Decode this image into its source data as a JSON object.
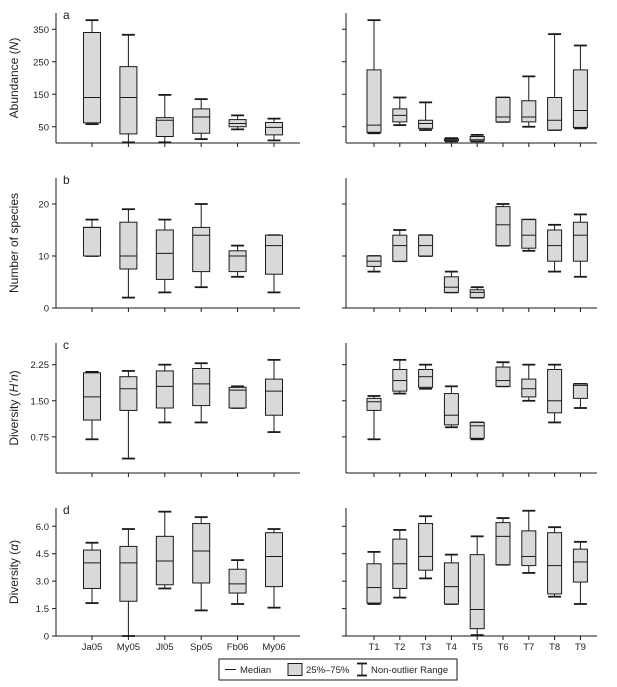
{
  "colors": {
    "box_fill": "#d9d9d9",
    "stroke": "#1a1a1a"
  },
  "x_groups": {
    "months": [
      "Ja05",
      "My05",
      "Jl05",
      "Sp05",
      "Fb06",
      "My06"
    ],
    "transects": [
      "T1",
      "T2",
      "T3",
      "T4",
      "T5",
      "T6",
      "T7",
      "T8",
      "T9"
    ]
  },
  "legend": {
    "median": "Median",
    "box": "25%–75%",
    "range": "Non-outlier Range"
  },
  "chart_data": [
    {
      "type": "boxplot",
      "panel": "a",
      "ylabel": "Abundance (N)",
      "ylabel_italic": "N",
      "ylim": [
        0,
        400
      ],
      "yticks": [
        50,
        150,
        250,
        350
      ],
      "ytick_labels": [
        "50",
        "150",
        "250",
        "350"
      ],
      "left": [
        {
          "category": "Ja05",
          "min": 58,
          "q1": 62,
          "median": 140,
          "q3": 340,
          "max": 378
        },
        {
          "category": "My05",
          "min": 2,
          "q1": 28,
          "median": 140,
          "q3": 235,
          "max": 333
        },
        {
          "category": "Jl05",
          "min": 2,
          "q1": 20,
          "median": 70,
          "q3": 78,
          "max": 148
        },
        {
          "category": "Sp05",
          "min": 12,
          "q1": 30,
          "median": 80,
          "q3": 105,
          "max": 135
        },
        {
          "category": "Fb06",
          "min": 42,
          "q1": 50,
          "median": 60,
          "q3": 72,
          "max": 85
        },
        {
          "category": "My06",
          "min": 8,
          "q1": 25,
          "median": 48,
          "q3": 63,
          "max": 75
        }
      ],
      "right": [
        {
          "category": "T1",
          "min": 30,
          "q1": 33,
          "median": 55,
          "q3": 225,
          "max": 378
        },
        {
          "category": "T2",
          "min": 55,
          "q1": 65,
          "median": 85,
          "q3": 105,
          "max": 140
        },
        {
          "category": "T3",
          "min": 40,
          "q1": 45,
          "median": 60,
          "q3": 70,
          "max": 125
        },
        {
          "category": "T4",
          "min": 5,
          "q1": 7,
          "median": 10,
          "q3": 13,
          "max": 15
        },
        {
          "category": "T5",
          "min": 5,
          "q1": 6,
          "median": 10,
          "q3": 20,
          "max": 25
        },
        {
          "category": "T6",
          "min": 65,
          "q1": 65,
          "median": 80,
          "q3": 140,
          "max": 140
        },
        {
          "category": "T7",
          "min": 50,
          "q1": 65,
          "median": 80,
          "q3": 130,
          "max": 205
        },
        {
          "category": "T8",
          "min": 40,
          "q1": 40,
          "median": 70,
          "q3": 140,
          "max": 335
        },
        {
          "category": "T9",
          "min": 45,
          "q1": 48,
          "median": 100,
          "q3": 225,
          "max": 300
        }
      ]
    },
    {
      "type": "boxplot",
      "panel": "b",
      "ylabel": "Number of species",
      "ylabel_italic": "",
      "ylim": [
        0,
        25
      ],
      "yticks": [
        0,
        10,
        20
      ],
      "ytick_labels": [
        "0",
        "10",
        "20"
      ],
      "left": [
        {
          "category": "Ja05",
          "min": 10,
          "q1": 10,
          "median": 15.5,
          "q3": 15.5,
          "max": 17
        },
        {
          "category": "My05",
          "min": 2,
          "q1": 7.5,
          "median": 10,
          "q3": 16.5,
          "max": 19
        },
        {
          "category": "Jl05",
          "min": 3,
          "q1": 5.5,
          "median": 10.5,
          "q3": 15,
          "max": 17
        },
        {
          "category": "Sp05",
          "min": 4,
          "q1": 7,
          "median": 14,
          "q3": 15.5,
          "max": 20
        },
        {
          "category": "Fb06",
          "min": 6,
          "q1": 7,
          "median": 10,
          "q3": 11,
          "max": 12
        },
        {
          "category": "My06",
          "min": 3,
          "q1": 6.5,
          "median": 12,
          "q3": 14,
          "max": 14
        }
      ],
      "right": [
        {
          "category": "T1",
          "min": 7,
          "q1": 8,
          "median": 9,
          "q3": 10,
          "max": 10
        },
        {
          "category": "T2",
          "min": 9,
          "q1": 9,
          "median": 12,
          "q3": 14,
          "max": 15
        },
        {
          "category": "T3",
          "min": 10,
          "q1": 10,
          "median": 12,
          "q3": 14,
          "max": 14
        },
        {
          "category": "T4",
          "min": 3,
          "q1": 3,
          "median": 4,
          "q3": 6,
          "max": 7
        },
        {
          "category": "T5",
          "min": 2,
          "q1": 2,
          "median": 3,
          "q3": 3.5,
          "max": 4
        },
        {
          "category": "T6",
          "min": 12,
          "q1": 12,
          "median": 16,
          "q3": 19.5,
          "max": 20
        },
        {
          "category": "T7",
          "min": 11,
          "q1": 11.5,
          "median": 14,
          "q3": 17,
          "max": 17
        },
        {
          "category": "T8",
          "min": 7,
          "q1": 9,
          "median": 12,
          "q3": 15,
          "max": 16
        },
        {
          "category": "T9",
          "min": 6,
          "q1": 9,
          "median": 14,
          "q3": 16.5,
          "max": 18
        }
      ]
    },
    {
      "type": "boxplot",
      "panel": "c",
      "ylabel": "Diversity (H’n)",
      "ylabel_italic": "H’n",
      "ylim": [
        0,
        2.7
      ],
      "yticks": [
        0.75,
        1.5,
        2.25
      ],
      "ytick_labels": [
        "0.75",
        "1.50",
        "2.25"
      ],
      "left": [
        {
          "category": "Ja05",
          "min": 0.7,
          "q1": 1.1,
          "median": 1.58,
          "q3": 2.08,
          "max": 2.1
        },
        {
          "category": "My05",
          "min": 0.3,
          "q1": 1.3,
          "median": 1.75,
          "q3": 2.0,
          "max": 2.12
        },
        {
          "category": "Jl05",
          "min": 1.05,
          "q1": 1.35,
          "median": 1.8,
          "q3": 2.12,
          "max": 2.25
        },
        {
          "category": "Sp05",
          "min": 1.05,
          "q1": 1.4,
          "median": 1.85,
          "q3": 2.17,
          "max": 2.28
        },
        {
          "category": "Fb06",
          "min": 1.35,
          "q1": 1.35,
          "median": 1.72,
          "q3": 1.78,
          "max": 1.8
        },
        {
          "category": "My06",
          "min": 0.85,
          "q1": 1.2,
          "median": 1.7,
          "q3": 1.95,
          "max": 2.35
        }
      ],
      "right": [
        {
          "category": "T1",
          "min": 0.7,
          "q1": 1.3,
          "median": 1.48,
          "q3": 1.55,
          "max": 1.6
        },
        {
          "category": "T2",
          "min": 1.65,
          "q1": 1.7,
          "median": 1.92,
          "q3": 2.15,
          "max": 2.35
        },
        {
          "category": "T3",
          "min": 1.75,
          "q1": 1.78,
          "median": 2.0,
          "q3": 2.15,
          "max": 2.25
        },
        {
          "category": "T4",
          "min": 0.95,
          "q1": 1.0,
          "median": 1.2,
          "q3": 1.65,
          "max": 1.8
        },
        {
          "category": "T5",
          "min": 0.7,
          "q1": 0.72,
          "median": 0.98,
          "q3": 1.05,
          "max": 1.05
        },
        {
          "category": "T6",
          "min": 1.8,
          "q1": 1.8,
          "median": 1.92,
          "q3": 2.2,
          "max": 2.3
        },
        {
          "category": "T7",
          "min": 1.5,
          "q1": 1.58,
          "median": 1.75,
          "q3": 1.95,
          "max": 2.25
        },
        {
          "category": "T8",
          "min": 1.05,
          "q1": 1.25,
          "median": 1.5,
          "q3": 2.15,
          "max": 2.25
        },
        {
          "category": "T9",
          "min": 1.35,
          "q1": 1.55,
          "median": 1.82,
          "q3": 1.85,
          "max": 1.85
        }
      ]
    },
    {
      "type": "boxplot",
      "panel": "d",
      "ylabel": "Diversity (α)",
      "ylabel_italic": "α",
      "ylim": [
        0,
        7.0
      ],
      "yticks": [
        0,
        1.5,
        3.0,
        4.5,
        6.0
      ],
      "ytick_labels": [
        "0",
        "1.5",
        "3.0",
        "4.5",
        "6.0"
      ],
      "left": [
        {
          "category": "Ja05",
          "min": 1.8,
          "q1": 2.6,
          "median": 4.0,
          "q3": 4.7,
          "max": 5.1
        },
        {
          "category": "My05",
          "min": 0,
          "q1": 1.9,
          "median": 4.0,
          "q3": 4.9,
          "max": 5.85
        },
        {
          "category": "Jl05",
          "min": 2.6,
          "q1": 2.8,
          "median": 4.1,
          "q3": 5.45,
          "max": 6.8
        },
        {
          "category": "Sp05",
          "min": 1.4,
          "q1": 2.9,
          "median": 4.65,
          "q3": 6.15,
          "max": 6.5
        },
        {
          "category": "Fb06",
          "min": 1.75,
          "q1": 2.35,
          "median": 2.85,
          "q3": 3.65,
          "max": 4.15
        },
        {
          "category": "My06",
          "min": 1.55,
          "q1": 2.7,
          "median": 4.35,
          "q3": 5.65,
          "max": 5.85
        }
      ],
      "right": [
        {
          "category": "T1",
          "min": 1.75,
          "q1": 1.8,
          "median": 2.65,
          "q3": 3.95,
          "max": 4.6
        },
        {
          "category": "T2",
          "min": 2.1,
          "q1": 2.6,
          "median": 3.95,
          "q3": 5.3,
          "max": 5.8
        },
        {
          "category": "T3",
          "min": 3.15,
          "q1": 3.6,
          "median": 4.35,
          "q3": 6.15,
          "max": 6.55
        },
        {
          "category": "T4",
          "min": 1.75,
          "q1": 1.75,
          "median": 2.7,
          "q3": 4.0,
          "max": 4.45
        },
        {
          "category": "T5",
          "min": 0.05,
          "q1": 0.4,
          "median": 1.45,
          "q3": 4.45,
          "max": 5.45
        },
        {
          "category": "T6",
          "min": 3.9,
          "q1": 3.9,
          "median": 5.45,
          "q3": 6.2,
          "max": 6.45
        },
        {
          "category": "T7",
          "min": 3.45,
          "q1": 3.85,
          "median": 4.35,
          "q3": 5.75,
          "max": 6.85
        },
        {
          "category": "T8",
          "min": 2.15,
          "q1": 2.3,
          "median": 3.85,
          "q3": 5.65,
          "max": 5.95
        },
        {
          "category": "T9",
          "min": 1.75,
          "q1": 2.95,
          "median": 4.05,
          "q3": 4.75,
          "max": 5.15
        }
      ]
    }
  ]
}
